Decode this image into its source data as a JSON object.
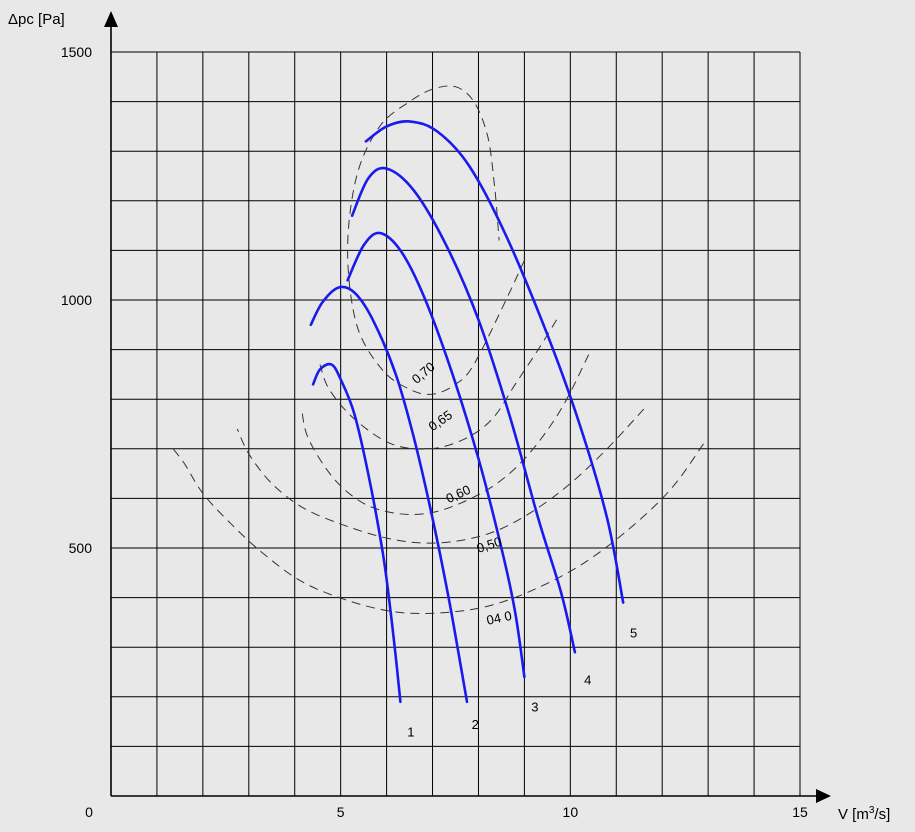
{
  "chart_data": {
    "type": "line",
    "xlabel_text": "V [m",
    "xlabel_sup": "3",
    "xlabel_tail": "/s]",
    "ylabel": "Δpc [Pa]",
    "xlim": [
      0,
      15
    ],
    "ylim": [
      0,
      1500
    ],
    "x_ticks": [
      {
        "value": 0,
        "label": "0"
      },
      {
        "value": 5,
        "label": "5"
      },
      {
        "value": 10,
        "label": "10"
      },
      {
        "value": 15,
        "label": "15"
      }
    ],
    "y_ticks": [
      {
        "value": 500,
        "label": "500"
      },
      {
        "value": 1000,
        "label": "1000"
      },
      {
        "value": 1500,
        "label": "1500"
      }
    ],
    "grid": true,
    "grid_step_x": 1,
    "grid_step_y": 100,
    "colors": {
      "fan_curve": "#1a1aee",
      "efficiency_curve": "#333333",
      "grid": "#000000",
      "background": "#e8e8e8"
    },
    "series": [
      {
        "name": "1",
        "points": [
          [
            4.4,
            830
          ],
          [
            4.55,
            860
          ],
          [
            4.8,
            870
          ],
          [
            5.0,
            840
          ],
          [
            5.3,
            770
          ],
          [
            5.6,
            650
          ],
          [
            5.9,
            500
          ],
          [
            6.05,
            400
          ],
          [
            6.2,
            280
          ],
          [
            6.3,
            190
          ]
        ],
        "label_at": [
          6.45,
          120
        ]
      },
      {
        "name": "2",
        "points": [
          [
            4.35,
            950
          ],
          [
            4.6,
            995
          ],
          [
            4.95,
            1025
          ],
          [
            5.3,
            1015
          ],
          [
            5.7,
            960
          ],
          [
            6.2,
            850
          ],
          [
            6.6,
            720
          ],
          [
            7.0,
            560
          ],
          [
            7.35,
            400
          ],
          [
            7.6,
            270
          ],
          [
            7.75,
            190
          ]
        ],
        "label_at": [
          7.85,
          135
        ]
      },
      {
        "name": "3",
        "points": [
          [
            5.15,
            1040
          ],
          [
            5.5,
            1110
          ],
          [
            5.85,
            1135
          ],
          [
            6.3,
            1100
          ],
          [
            6.8,
            1010
          ],
          [
            7.4,
            860
          ],
          [
            8.0,
            680
          ],
          [
            8.5,
            500
          ],
          [
            8.8,
            370
          ],
          [
            9.0,
            240
          ]
        ],
        "label_at": [
          9.15,
          170
        ]
      },
      {
        "name": "4",
        "points": [
          [
            5.25,
            1170
          ],
          [
            5.6,
            1245
          ],
          [
            6.0,
            1265
          ],
          [
            6.6,
            1220
          ],
          [
            7.3,
            1110
          ],
          [
            8.0,
            960
          ],
          [
            8.7,
            760
          ],
          [
            9.3,
            560
          ],
          [
            9.8,
            410
          ],
          [
            10.1,
            290
          ]
        ],
        "label_at": [
          10.3,
          225
        ]
      },
      {
        "name": "5",
        "points": [
          [
            5.55,
            1320
          ],
          [
            6.0,
            1350
          ],
          [
            6.5,
            1360
          ],
          [
            7.1,
            1340
          ],
          [
            7.8,
            1270
          ],
          [
            8.6,
            1130
          ],
          [
            9.5,
            930
          ],
          [
            10.2,
            750
          ],
          [
            10.8,
            560
          ],
          [
            11.15,
            390
          ]
        ],
        "label_at": [
          11.3,
          320
        ]
      }
    ],
    "efficiency_curves": [
      {
        "label": "0,70",
        "points": [
          [
            9.0,
            1080
          ],
          [
            8.6,
            1000
          ],
          [
            7.9,
            870
          ],
          [
            7.5,
            830
          ],
          [
            7.0,
            810
          ],
          [
            6.5,
            820
          ],
          [
            5.9,
            860
          ],
          [
            5.35,
            950
          ],
          [
            5.15,
            1100
          ],
          [
            5.35,
            1250
          ],
          [
            5.85,
            1350
          ],
          [
            6.5,
            1400
          ],
          [
            7.0,
            1425
          ],
          [
            7.5,
            1430
          ],
          [
            7.9,
            1400
          ],
          [
            8.2,
            1330
          ],
          [
            8.35,
            1230
          ],
          [
            8.45,
            1120
          ]
        ],
        "label_at": [
          6.65,
          830
        ],
        "label_rotate": -40
      },
      {
        "label": "0,65",
        "points": [
          [
            9.7,
            960
          ],
          [
            9.3,
            900
          ],
          [
            8.8,
            830
          ],
          [
            8.3,
            760
          ],
          [
            7.7,
            720
          ],
          [
            6.95,
            700
          ],
          [
            6.1,
            710
          ],
          [
            5.3,
            760
          ],
          [
            4.75,
            820
          ],
          [
            4.55,
            870
          ]
        ],
        "label_at": [
          7.0,
          735
        ],
        "label_rotate": -35
      },
      {
        "label": "0,60",
        "points": [
          [
            10.4,
            890
          ],
          [
            9.8,
            780
          ],
          [
            9.1,
            690
          ],
          [
            8.4,
            630
          ],
          [
            7.6,
            590
          ],
          [
            6.9,
            570
          ],
          [
            6.2,
            570
          ],
          [
            5.5,
            590
          ],
          [
            4.85,
            640
          ],
          [
            4.3,
            720
          ],
          [
            4.15,
            780
          ]
        ],
        "label_at": [
          7.35,
          590
        ],
        "label_rotate": -25
      },
      {
        "label": "0,50",
        "points": [
          [
            11.6,
            780
          ],
          [
            10.8,
            700
          ],
          [
            10.0,
            630
          ],
          [
            9.2,
            575
          ],
          [
            8.4,
            535
          ],
          [
            7.6,
            515
          ],
          [
            6.8,
            510
          ],
          [
            6.0,
            520
          ],
          [
            5.1,
            545
          ],
          [
            4.2,
            580
          ],
          [
            3.5,
            630
          ],
          [
            3.0,
            690
          ],
          [
            2.75,
            740
          ]
        ],
        "label_at": [
          8.0,
          490
        ],
        "label_rotate": -18
      },
      {
        "label": "04 0",
        "points": [
          [
            12.9,
            710
          ],
          [
            12.2,
            620
          ],
          [
            11.3,
            540
          ],
          [
            10.3,
            470
          ],
          [
            9.3,
            420
          ],
          [
            8.3,
            385
          ],
          [
            7.3,
            370
          ],
          [
            6.3,
            370
          ],
          [
            5.3,
            390
          ],
          [
            4.2,
            430
          ],
          [
            3.3,
            490
          ],
          [
            2.6,
            550
          ],
          [
            2.0,
            610
          ],
          [
            1.6,
            670
          ],
          [
            1.35,
            700
          ]
        ],
        "label_at": [
          8.2,
          345
        ],
        "label_rotate": -12
      }
    ]
  }
}
